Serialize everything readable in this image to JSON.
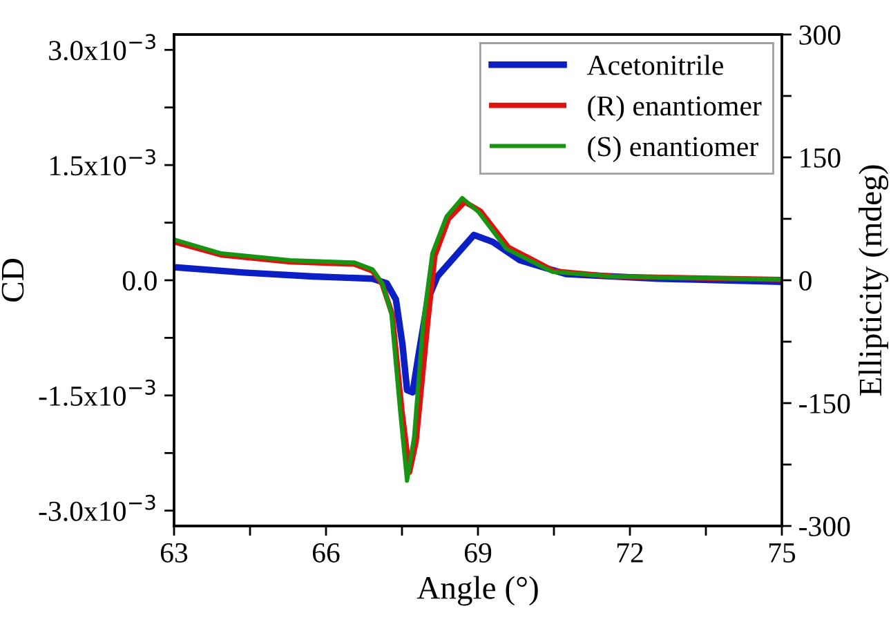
{
  "chart_data": {
    "type": "line",
    "xlabel": "Angle (°)",
    "ylabel": "CD",
    "y2label": "Ellipticity (mdeg)",
    "xlim": [
      63,
      75
    ],
    "xticks": [
      63,
      {
        "value": 64.5,
        "label": null
      },
      66,
      {
        "value": 67.5,
        "label": null
      },
      69,
      {
        "value": 70.5,
        "label": null
      },
      72,
      {
        "value": 73.5,
        "label": null
      },
      75
    ],
    "ylim": [
      -0.0032,
      0.0032
    ],
    "yticks": [
      {
        "value": -0.003,
        "label": "-3.0x10$^{−3}$"
      },
      {
        "value": -0.00225,
        "label": null
      },
      {
        "value": -0.0015,
        "label": "-1.5x10$^{−3}$"
      },
      {
        "value": -0.00075,
        "label": null
      },
      {
        "value": 0,
        "label": "0.0"
      },
      {
        "value": 0.00075,
        "label": null
      },
      {
        "value": 0.0015,
        "label": "1.5x10$^{−3}$"
      },
      {
        "value": 0.00225,
        "label": null
      },
      {
        "value": 0.003,
        "label": "3.0x10$^{−3}$"
      }
    ],
    "y2lim": [
      -300,
      300
    ],
    "y2ticks": [
      -300,
      {
        "value": -225,
        "label": null
      },
      -150,
      {
        "value": -75,
        "label": null
      },
      0,
      {
        "value": 75,
        "label": null
      },
      150,
      {
        "value": 225,
        "label": null
      },
      300
    ],
    "legend": "top right",
    "grid": false,
    "marker": "none",
    "line_style": "solid",
    "series": [
      {
        "name": "Acetonitrile",
        "color": "#0b1fc4",
        "x": [
          63.0,
          64.38,
          65.74,
          66.92,
          67.2,
          67.38,
          67.51,
          67.6,
          67.71,
          67.83,
          68.01,
          68.2,
          68.56,
          68.92,
          69.29,
          69.83,
          70.74,
          72.56,
          75.0
        ],
        "values": [
          0.00017,
          0.0001,
          5e-05,
          2e-05,
          -4e-05,
          -0.00025,
          -0.00084,
          -0.00143,
          -0.00146,
          -0.00096,
          -0.00025,
          5e-05,
          0.00032,
          0.00059,
          0.0005,
          0.00026,
          8e-05,
          2e-05,
          -2e-05
        ]
      },
      {
        "name": "(R) enantiomer",
        "color": "#e0120f",
        "x": [
          63.0,
          63.93,
          65.29,
          66.56,
          66.92,
          67.11,
          67.31,
          67.5,
          67.65,
          67.78,
          68.01,
          68.15,
          68.42,
          68.74,
          69.05,
          69.6,
          70.5,
          71.64,
          75.0
        ],
        "values": [
          0.0005,
          0.00033,
          0.00024,
          0.00021,
          0.00012,
          -5e-05,
          -0.00045,
          -0.0017,
          -0.0025,
          -0.0021,
          -0.00054,
          0.00032,
          0.0008,
          0.00102,
          0.0009,
          0.00043,
          0.00012,
          5e-05,
          1e-05
        ]
      },
      {
        "name": "(S) enantiomer",
        "color": "#169412",
        "x": [
          63.0,
          63.93,
          65.29,
          66.56,
          66.92,
          67.11,
          67.29,
          67.47,
          67.6,
          67.74,
          67.92,
          68.1,
          68.38,
          68.69,
          69.01,
          69.56,
          70.47,
          71.64,
          75.0
        ],
        "values": [
          0.00053,
          0.00035,
          0.00026,
          0.00023,
          0.00014,
          -4e-05,
          -0.00043,
          -0.00174,
          -0.00261,
          -0.00204,
          -0.00054,
          0.00035,
          0.00083,
          0.00107,
          0.00089,
          0.00041,
          0.00011,
          5e-05,
          1e-05
        ]
      }
    ]
  }
}
